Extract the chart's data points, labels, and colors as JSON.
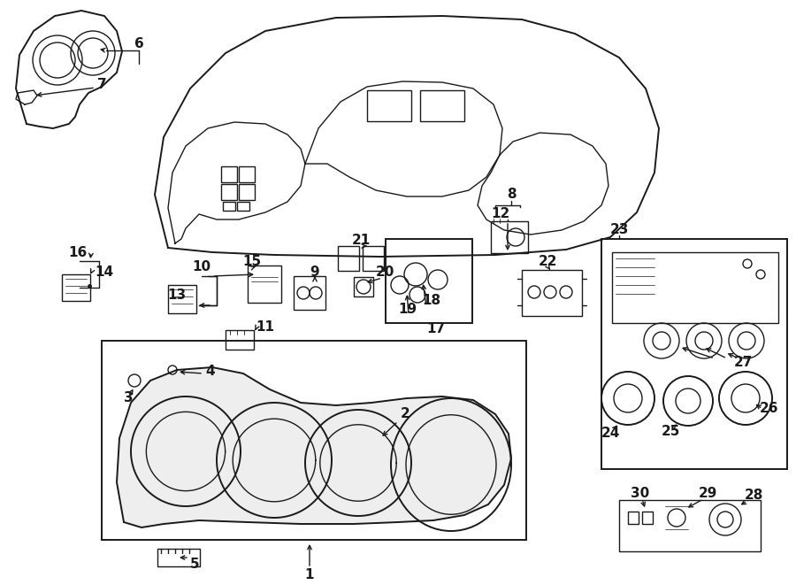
{
  "bg_color": "#ffffff",
  "line_color": "#1a1a1a",
  "fig_width": 9.0,
  "fig_height": 6.61,
  "dpi": 100,
  "number_fontsize": 11,
  "number_fontsize_small": 10
}
